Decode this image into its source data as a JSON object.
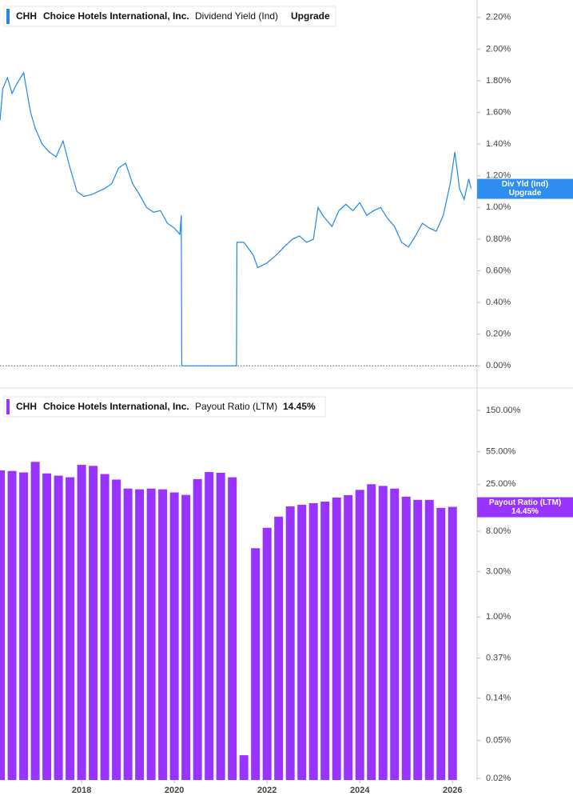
{
  "chart_data": [
    {
      "type": "line",
      "ticker": "CHH",
      "company": "Choice Hotels International, Inc.",
      "metric": "Dividend Yield (Ind)",
      "status": "Upgrade",
      "badge_label": "Div Yld (Ind)",
      "x": [
        2016.24,
        2016.3,
        2016.4,
        2016.5,
        2016.6,
        2016.75,
        2016.9,
        2017.0,
        2017.15,
        2017.3,
        2017.45,
        2017.6,
        2017.75,
        2017.9,
        2018.05,
        2018.2,
        2018.35,
        2018.5,
        2018.65,
        2018.8,
        2018.95,
        2019.1,
        2019.25,
        2019.4,
        2019.55,
        2019.7,
        2019.85,
        2020.0,
        2020.12,
        2020.15,
        2020.16,
        2021.34,
        2021.35,
        2021.5,
        2021.7,
        2021.8,
        2022.0,
        2022.2,
        2022.4,
        2022.55,
        2022.7,
        2022.85,
        2023.0,
        2023.1,
        2023.2,
        2023.4,
        2023.55,
        2023.7,
        2023.85,
        2024.0,
        2024.15,
        2024.3,
        2024.45,
        2024.6,
        2024.75,
        2024.9,
        2025.05,
        2025.2,
        2025.35,
        2025.5,
        2025.65,
        2025.8,
        2025.95,
        2026.05,
        2026.15,
        2026.25,
        2026.35,
        2026.4
      ],
      "series": [
        {
          "name": "Dividend Yield (Ind)",
          "color": "#1e88e5",
          "values": [
            1.55,
            1.75,
            1.82,
            1.72,
            1.78,
            1.85,
            1.6,
            1.5,
            1.4,
            1.35,
            1.32,
            1.42,
            1.25,
            1.1,
            1.07,
            1.08,
            1.1,
            1.12,
            1.15,
            1.25,
            1.28,
            1.15,
            1.08,
            1.0,
            0.97,
            0.98,
            0.9,
            0.87,
            0.83,
            0.95,
            0.0,
            0.0,
            0.78,
            0.78,
            0.7,
            0.62,
            0.65,
            0.7,
            0.76,
            0.8,
            0.82,
            0.78,
            0.8,
            1.0,
            0.95,
            0.88,
            0.98,
            1.02,
            0.98,
            1.03,
            0.95,
            0.98,
            1.0,
            0.93,
            0.88,
            0.78,
            0.75,
            0.82,
            0.9,
            0.87,
            0.85,
            0.95,
            1.15,
            1.35,
            1.12,
            1.05,
            1.18,
            1.12
          ]
        }
      ],
      "xlim": [
        2016.24,
        2026.53
      ],
      "ylim": [
        -0.14,
        2.31
      ],
      "yticks": [
        {
          "value": 0,
          "label": "0.00%"
        },
        {
          "value": 0.2,
          "label": "0.20%"
        },
        {
          "value": 0.4,
          "label": "0.40%"
        },
        {
          "value": 0.6,
          "label": "0.60%"
        },
        {
          "value": 0.8,
          "label": "0.80%"
        },
        {
          "value": 1.0,
          "label": "1.00%"
        },
        {
          "value": 1.2,
          "label": "1.20%"
        },
        {
          "value": 1.4,
          "label": "1.40%"
        },
        {
          "value": 1.6,
          "label": "1.60%"
        },
        {
          "value": 1.8,
          "label": "1.80%"
        },
        {
          "value": 2.0,
          "label": "2.00%"
        },
        {
          "value": 2.2,
          "label": "2.20%"
        }
      ],
      "log_scale": false
    },
    {
      "type": "bar",
      "ticker": "CHH",
      "company": "Choice Hotels International, Inc.",
      "metric": "Payout Ratio (LTM)",
      "current_label": "14.45%",
      "x": [
        2016.25,
        2016.5,
        2016.75,
        2017.0,
        2017.25,
        2017.5,
        2017.75,
        2018.0,
        2018.25,
        2018.5,
        2018.75,
        2019.0,
        2019.25,
        2019.5,
        2019.75,
        2020.0,
        2020.25,
        2020.5,
        2020.75,
        2021.0,
        2021.25,
        2021.5,
        2021.75,
        2022.0,
        2022.25,
        2022.5,
        2022.75,
        2023.0,
        2023.25,
        2023.5,
        2023.75,
        2024.0,
        2024.25,
        2024.5,
        2024.75,
        2025.0,
        2025.25,
        2025.5,
        2025.75,
        2026.0
      ],
      "series": [
        {
          "name": "Payout Ratio (LTM)",
          "color": "#9933ff",
          "values": [
            35,
            34.5,
            33.3,
            43,
            32.5,
            30.8,
            29.6,
            40,
            39,
            32,
            28,
            22.5,
            22.1,
            22.5,
            22.1,
            20.5,
            19.3,
            28.3,
            33.6,
            33,
            29.6,
            0.035,
            5.3,
            8.7,
            11.4,
            14.6,
            15.2,
            15.8,
            16.4,
            18.1,
            19.2,
            21.8,
            25,
            24,
            22.5,
            18.5,
            17.1,
            17.1,
            14.1,
            14.45
          ]
        }
      ],
      "xlim": [
        2016.24,
        2026.53
      ],
      "xticks": [
        2018,
        2020,
        2022,
        2024,
        2026
      ],
      "ylim": [
        0.0192,
        234
      ],
      "yticks": [
        {
          "value": 0.02,
          "label": "0.02%"
        },
        {
          "value": 0.05,
          "label": "0.05%"
        },
        {
          "value": 0.14,
          "label": "0.14%"
        },
        {
          "value": 0.37,
          "label": "0.37%"
        },
        {
          "value": 1,
          "label": "1.00%"
        },
        {
          "value": 3,
          "label": "3.00%"
        },
        {
          "value": 8,
          "label": "8.00%"
        },
        {
          "value": 25,
          "label": "25.00%"
        },
        {
          "value": 55,
          "label": "55.00%"
        },
        {
          "value": 150,
          "label": "150.00%"
        }
      ],
      "log_scale": true
    }
  ]
}
